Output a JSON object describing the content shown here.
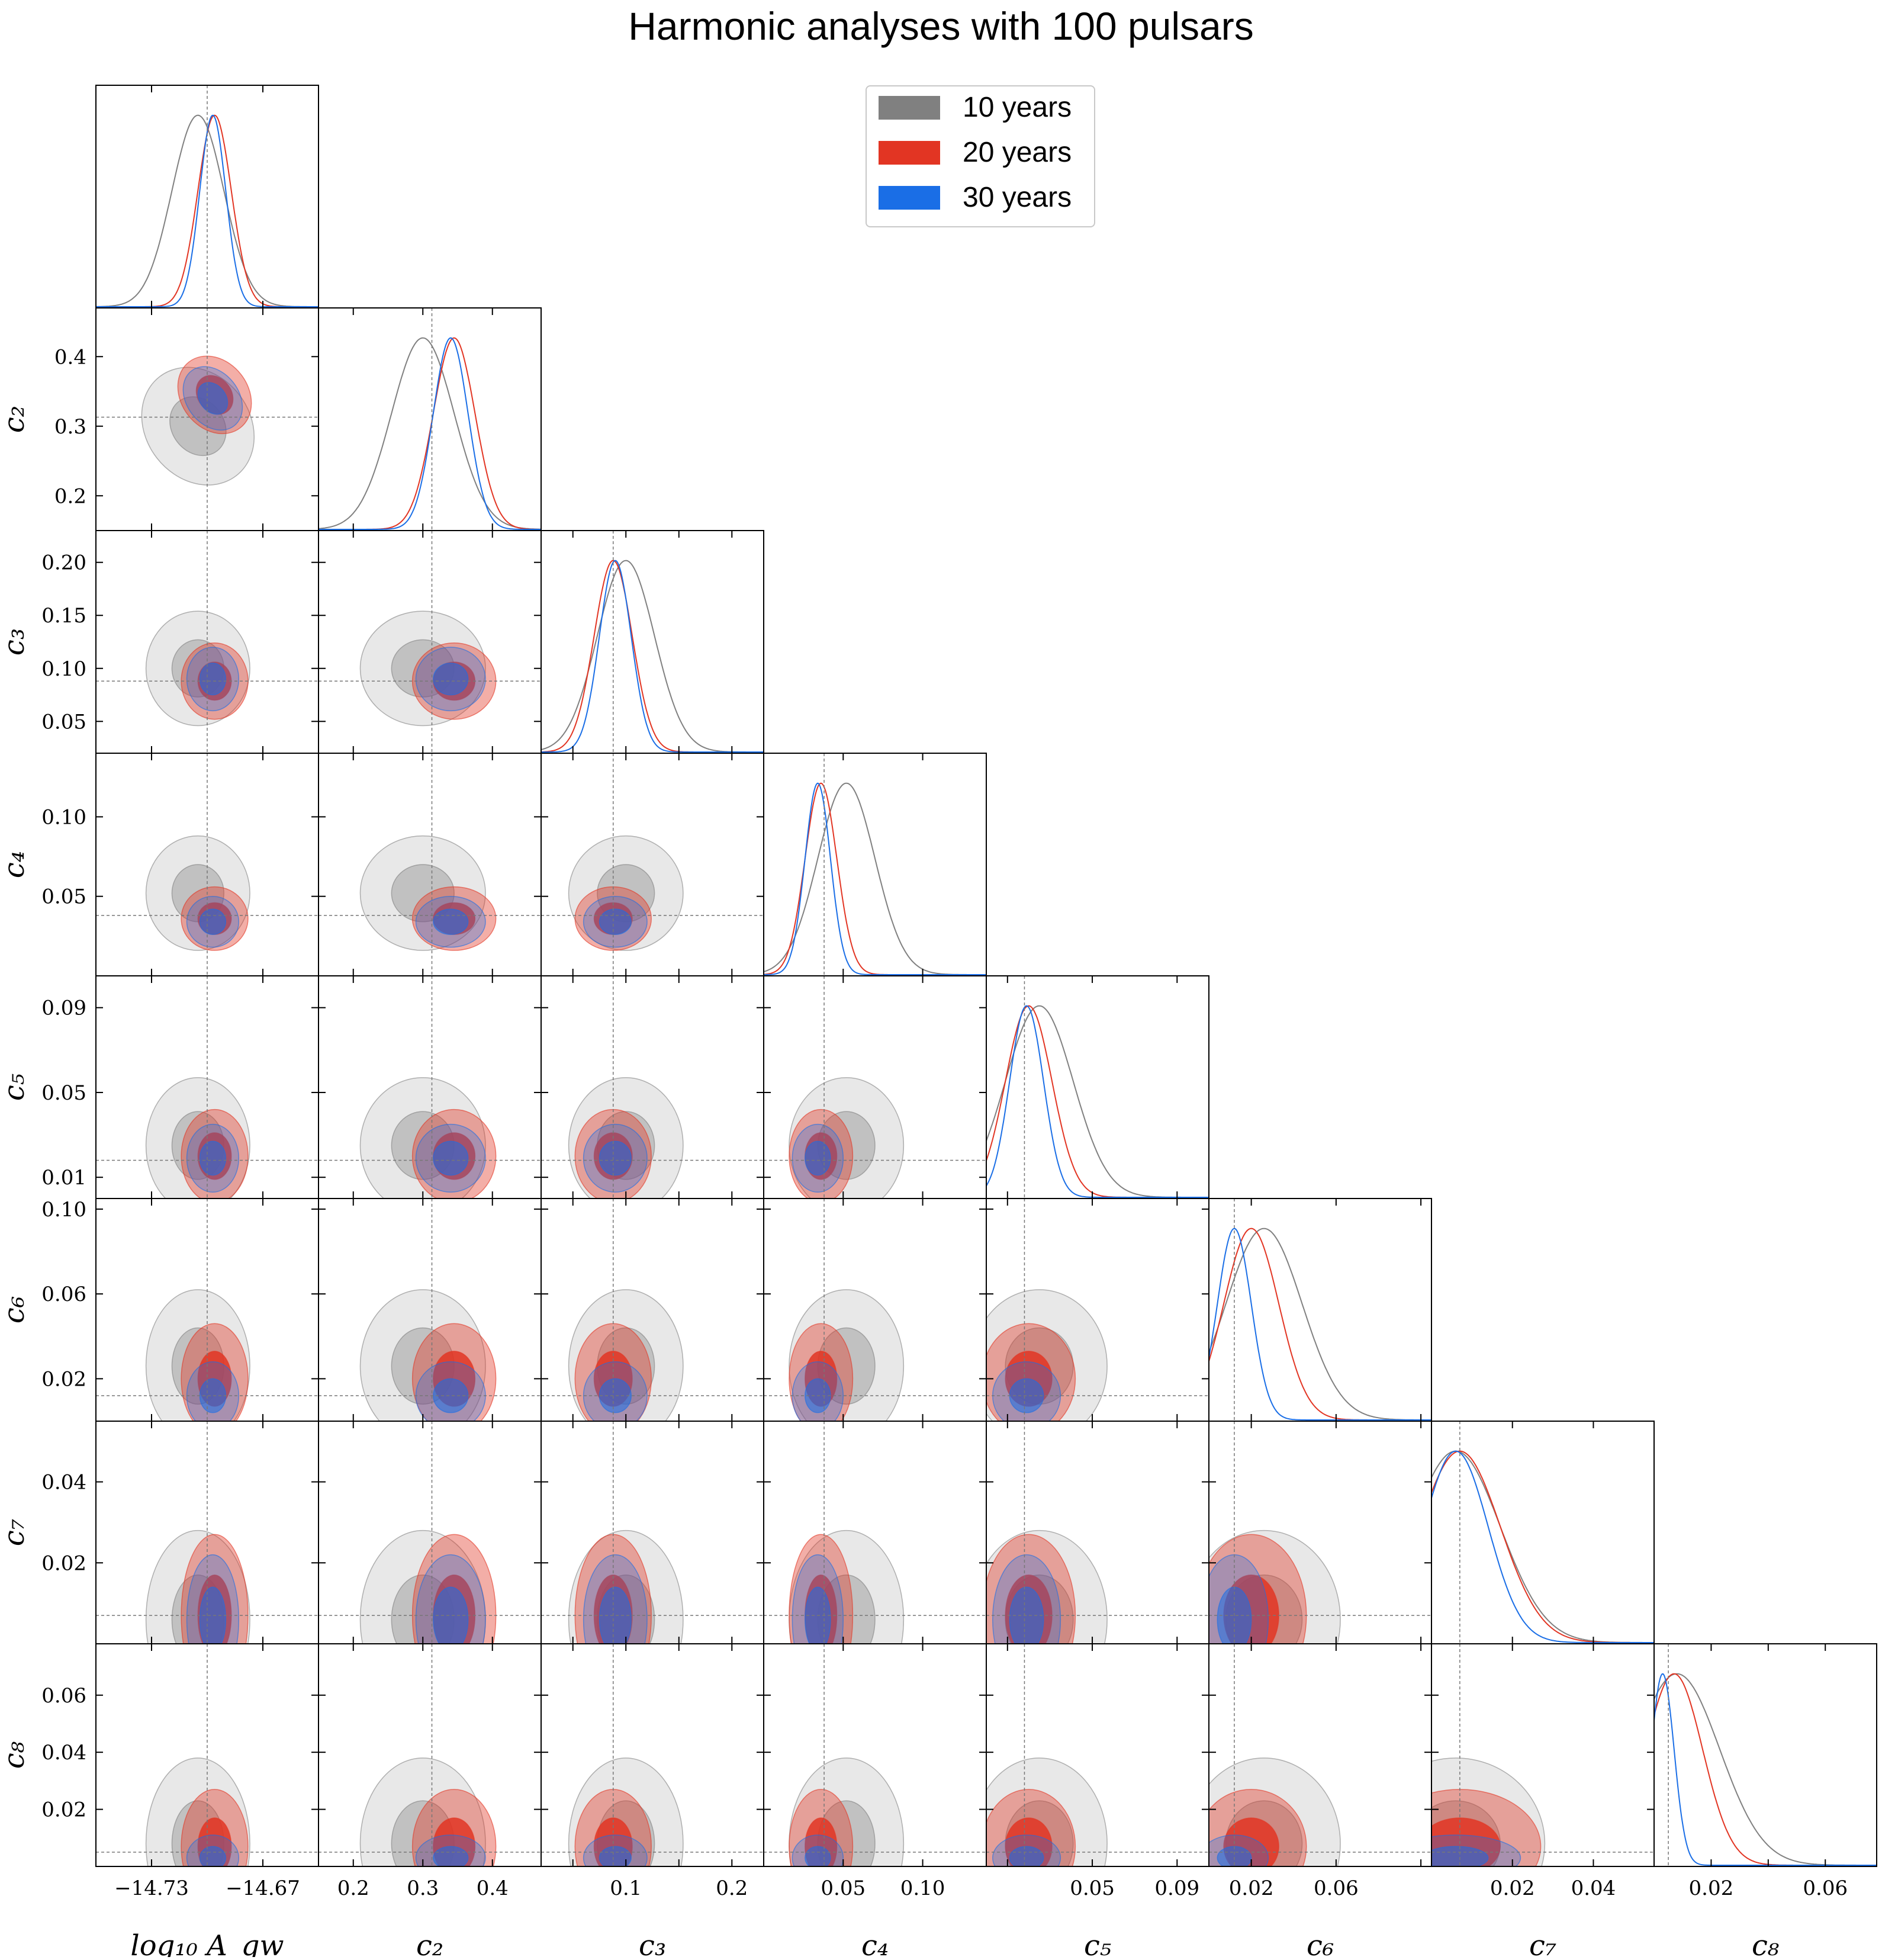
{
  "title": "Harmonic analyses with 100 pulsars",
  "legend": [
    {
      "label": "10 years",
      "color": "#808080"
    },
    {
      "label": "20 years",
      "color": "#e23523"
    },
    {
      "label": "30 years",
      "color": "#1a6ee6"
    }
  ],
  "chart_data": {
    "type": "corner",
    "title": "Harmonic analyses with 100 pulsars",
    "parameters": [
      {
        "key": "log10_A_gw",
        "label": "log₁₀ A_gw",
        "range": [
          -14.76,
          -14.64
        ],
        "ticks": [
          -14.73,
          -14.67
        ],
        "tick_labels": [
          "−14.73",
          "−14.67"
        ],
        "truth": -14.7
      },
      {
        "key": "c2",
        "label": "c₂",
        "range": [
          0.15,
          0.47
        ],
        "ticks": [
          0.2,
          0.3,
          0.4
        ],
        "tick_labels": [
          "0.2",
          "0.3",
          "0.4"
        ],
        "truth": 0.313
      },
      {
        "key": "c3",
        "label": "c₃",
        "range": [
          0.02,
          0.23
        ],
        "ticks": [
          0.05,
          0.1,
          0.15,
          0.2
        ],
        "tick_labels": [
          "0.05",
          "0.10",
          "0.15",
          "0.20"
        ],
        "truth": 0.088,
        "x_ticks": [
          0.1,
          0.2
        ],
        "x_tick_labels": [
          "0.1",
          "0.2"
        ]
      },
      {
        "key": "c4",
        "label": "c₄",
        "range": [
          0.0,
          0.14
        ],
        "ticks": [
          0.05,
          0.1
        ],
        "tick_labels": [
          "0.05",
          "0.10"
        ],
        "truth": 0.038
      },
      {
        "key": "c5",
        "label": "c₅",
        "range": [
          0.0,
          0.105
        ],
        "ticks": [
          0.01,
          0.05,
          0.09
        ],
        "tick_labels": [
          "0.01",
          "0.05",
          "0.09"
        ],
        "truth": 0.018,
        "x_ticks": [
          0.05,
          0.09
        ],
        "x_tick_labels": [
          "0.05",
          "0.09"
        ]
      },
      {
        "key": "c6",
        "label": "c₆",
        "range": [
          0.0,
          0.105
        ],
        "ticks": [
          0.02,
          0.06,
          0.1
        ],
        "tick_labels": [
          "0.02",
          "0.06",
          "0.10"
        ],
        "truth": 0.012,
        "x_ticks": [
          0.02,
          0.06
        ],
        "x_tick_labels": [
          "0.02",
          "0.06"
        ]
      },
      {
        "key": "c7",
        "label": "c₇",
        "range": [
          0.0,
          0.055
        ],
        "ticks": [
          0.02,
          0.04
        ],
        "tick_labels": [
          "0.02",
          "0.04"
        ],
        "truth": 0.007
      },
      {
        "key": "c8",
        "label": "c₈",
        "range": [
          0.0,
          0.078
        ],
        "ticks": [
          0.02,
          0.04,
          0.06
        ],
        "tick_labels": [
          "0.02",
          "0.04",
          "0.06"
        ],
        "truth": 0.005,
        "x_ticks": [
          0.02,
          0.06
        ],
        "x_tick_labels": [
          "0.02",
          "0.06"
        ]
      }
    ],
    "series": [
      {
        "name": "10 years",
        "color": "#808080",
        "mean": [
          -14.705,
          0.3,
          0.1,
          0.052,
          0.025,
          0.026,
          0.006,
          0.008
        ],
        "sigma": [
          0.014,
          0.045,
          0.027,
          0.018,
          0.016,
          0.018,
          0.011,
          0.015
        ]
      },
      {
        "name": "20 years",
        "color": "#e23523",
        "mean": [
          -14.696,
          0.345,
          0.088,
          0.036,
          0.02,
          0.02,
          0.007,
          0.007
        ],
        "sigma": [
          0.009,
          0.03,
          0.018,
          0.01,
          0.011,
          0.013,
          0.01,
          0.01
        ]
      },
      {
        "name": "30 years",
        "color": "#1a6ee6",
        "mean": [
          -14.697,
          0.34,
          0.09,
          0.034,
          0.019,
          0.012,
          0.006,
          0.003
        ],
        "sigma": [
          0.007,
          0.025,
          0.015,
          0.008,
          0.008,
          0.008,
          0.008,
          0.004
        ]
      }
    ],
    "truth_lines": [
      -14.7,
      0.313,
      0.088,
      0.038,
      0.018,
      0.012,
      0.007,
      0.005
    ]
  }
}
